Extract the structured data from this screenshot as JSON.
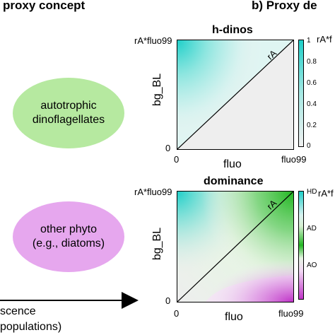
{
  "panel_a": {
    "title": "proxy concept",
    "groups": [
      {
        "line1": "autotrophic",
        "line2": "dinoflagellates",
        "color": "#b6e9a0"
      },
      {
        "line1": "other phyto",
        "line2": "(e.g., diatoms)",
        "color": "#e6a7ee"
      }
    ],
    "arrow_text_line1": "scence",
    "arrow_text_line2": "populations)"
  },
  "panel_b": {
    "title": "b) Proxy de",
    "top_plot": {
      "title": "h-dinos",
      "ylabel": "bg_BL",
      "xlabel": "fluo",
      "y_top_label": "rA*fluo99",
      "y_zero": "0",
      "x_zero": "0",
      "x_end": "fluo99",
      "line_label": "rA",
      "colorbar_ticks": [
        "1",
        "0.8",
        "0.6",
        "0.4",
        "0.2",
        "0"
      ],
      "colorbar_right_label": "rA*f"
    },
    "bottom_plot": {
      "title": "dominance",
      "ylabel": "bg_BL",
      "xlabel": "fluo",
      "y_top_label": "rA*fluo99",
      "y_zero": "0",
      "x_zero": "0",
      "x_end": "fluo99",
      "line_label": "rA",
      "colorbar_ticks": [
        "HD",
        "AD",
        "AO"
      ],
      "colorbar_right_label": "rA*f"
    }
  },
  "colors": {
    "cyan": "#1ecfc9",
    "green": "#22b722",
    "magenta": "#c033c8",
    "light_gray": "#eeeeee"
  }
}
